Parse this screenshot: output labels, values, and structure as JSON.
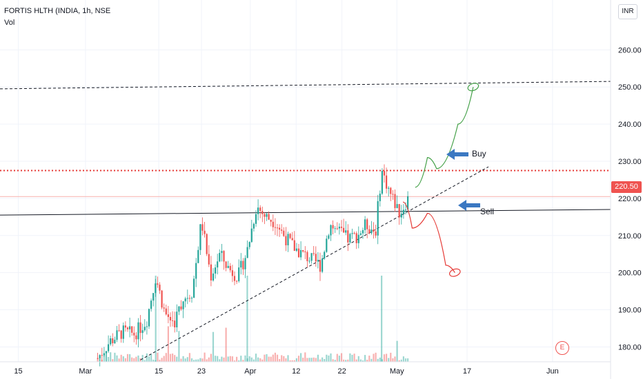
{
  "header": {
    "title": "FORTIS HLTH (INDIA, 1h, NSE",
    "volume_label": "Vol",
    "currency": "INR"
  },
  "annotations": {
    "buy_label": "Buy",
    "sell_label": "Sell",
    "earnings_marker": "E"
  },
  "colors": {
    "up": "#26a69a",
    "down": "#ef5350",
    "resistance": "#e53935",
    "buy_path": "#43a047",
    "sell_path": "#e53935",
    "arrow": "#3b78c2"
  },
  "chart_data": {
    "type": "candlestick",
    "title": "FORTIS HLTH (INDIA, 1h, NSE",
    "ylim": [
      176,
      266
    ],
    "y_ticks": [
      180,
      190,
      200,
      210,
      220,
      230,
      240,
      250,
      260
    ],
    "y_tick_labels": [
      "180.00",
      "190.00",
      "200.00",
      "210.00",
      "220.00",
      "230.00",
      "240.00",
      "250.00",
      "260.00"
    ],
    "x_ticks": [
      "15",
      "Mar",
      "15",
      "23",
      "Apr",
      "12",
      "22",
      "May",
      "17",
      "Jun"
    ],
    "last_price": 220.5,
    "last_price_label": "220.50",
    "resistance_level": 227.5,
    "upper_level": 250.5,
    "price_path": [
      {
        "x": 0.16,
        "p": 177.0
      },
      {
        "x": 0.18,
        "p": 181.5
      },
      {
        "x": 0.2,
        "p": 184.0
      },
      {
        "x": 0.22,
        "p": 183.5
      },
      {
        "x": 0.24,
        "p": 187.0
      },
      {
        "x": 0.255,
        "p": 199.0
      },
      {
        "x": 0.27,
        "p": 189.0
      },
      {
        "x": 0.285,
        "p": 186.5
      },
      {
        "x": 0.3,
        "p": 193.0
      },
      {
        "x": 0.315,
        "p": 195.0
      },
      {
        "x": 0.33,
        "p": 214.0
      },
      {
        "x": 0.345,
        "p": 199.0
      },
      {
        "x": 0.36,
        "p": 205.0
      },
      {
        "x": 0.375,
        "p": 201.0
      },
      {
        "x": 0.39,
        "p": 199.0
      },
      {
        "x": 0.405,
        "p": 206.0
      },
      {
        "x": 0.42,
        "p": 218.0
      },
      {
        "x": 0.435,
        "p": 215.0
      },
      {
        "x": 0.45,
        "p": 214.0
      },
      {
        "x": 0.465,
        "p": 210.0
      },
      {
        "x": 0.48,
        "p": 207.0
      },
      {
        "x": 0.495,
        "p": 205.0
      },
      {
        "x": 0.51,
        "p": 203.5
      },
      {
        "x": 0.525,
        "p": 202.0
      },
      {
        "x": 0.54,
        "p": 213.0
      },
      {
        "x": 0.555,
        "p": 211.0
      },
      {
        "x": 0.57,
        "p": 209.0
      },
      {
        "x": 0.585,
        "p": 210.0
      },
      {
        "x": 0.6,
        "p": 213.0
      },
      {
        "x": 0.615,
        "p": 211.0
      },
      {
        "x": 0.625,
        "p": 227.5
      },
      {
        "x": 0.64,
        "p": 221.0
      },
      {
        "x": 0.655,
        "p": 216.0
      },
      {
        "x": 0.67,
        "p": 220.5
      }
    ],
    "trend_lines": [
      {
        "name": "upper-dashed",
        "style": "dashed",
        "from": {
          "d": 0,
          "p": 249.5
        },
        "to": {
          "d": 1,
          "p": 251.5
        }
      },
      {
        "name": "horizontal-support",
        "style": "solid",
        "from": {
          "d": 0,
          "p": 215.5
        },
        "to": {
          "d": 1,
          "p": 217.0
        }
      },
      {
        "name": "rising-trendline",
        "style": "dashed",
        "from": {
          "d": 0.23,
          "p": 176.5
        },
        "to": {
          "d": 0.8,
          "p": 228.5
        }
      }
    ],
    "scenario_paths": [
      {
        "name": "buy-scenario",
        "points": [
          {
            "d": 0.68,
            "p": 223
          },
          {
            "d": 0.7,
            "p": 231
          },
          {
            "d": 0.715,
            "p": 228
          },
          {
            "d": 0.75,
            "p": 240
          },
          {
            "d": 0.775,
            "p": 250
          }
        ]
      },
      {
        "name": "sell-scenario",
        "points": [
          {
            "d": 0.66,
            "p": 219
          },
          {
            "d": 0.675,
            "p": 212
          },
          {
            "d": 0.7,
            "p": 216
          },
          {
            "d": 0.73,
            "p": 202
          },
          {
            "d": 0.745,
            "p": 200
          }
        ]
      }
    ]
  }
}
